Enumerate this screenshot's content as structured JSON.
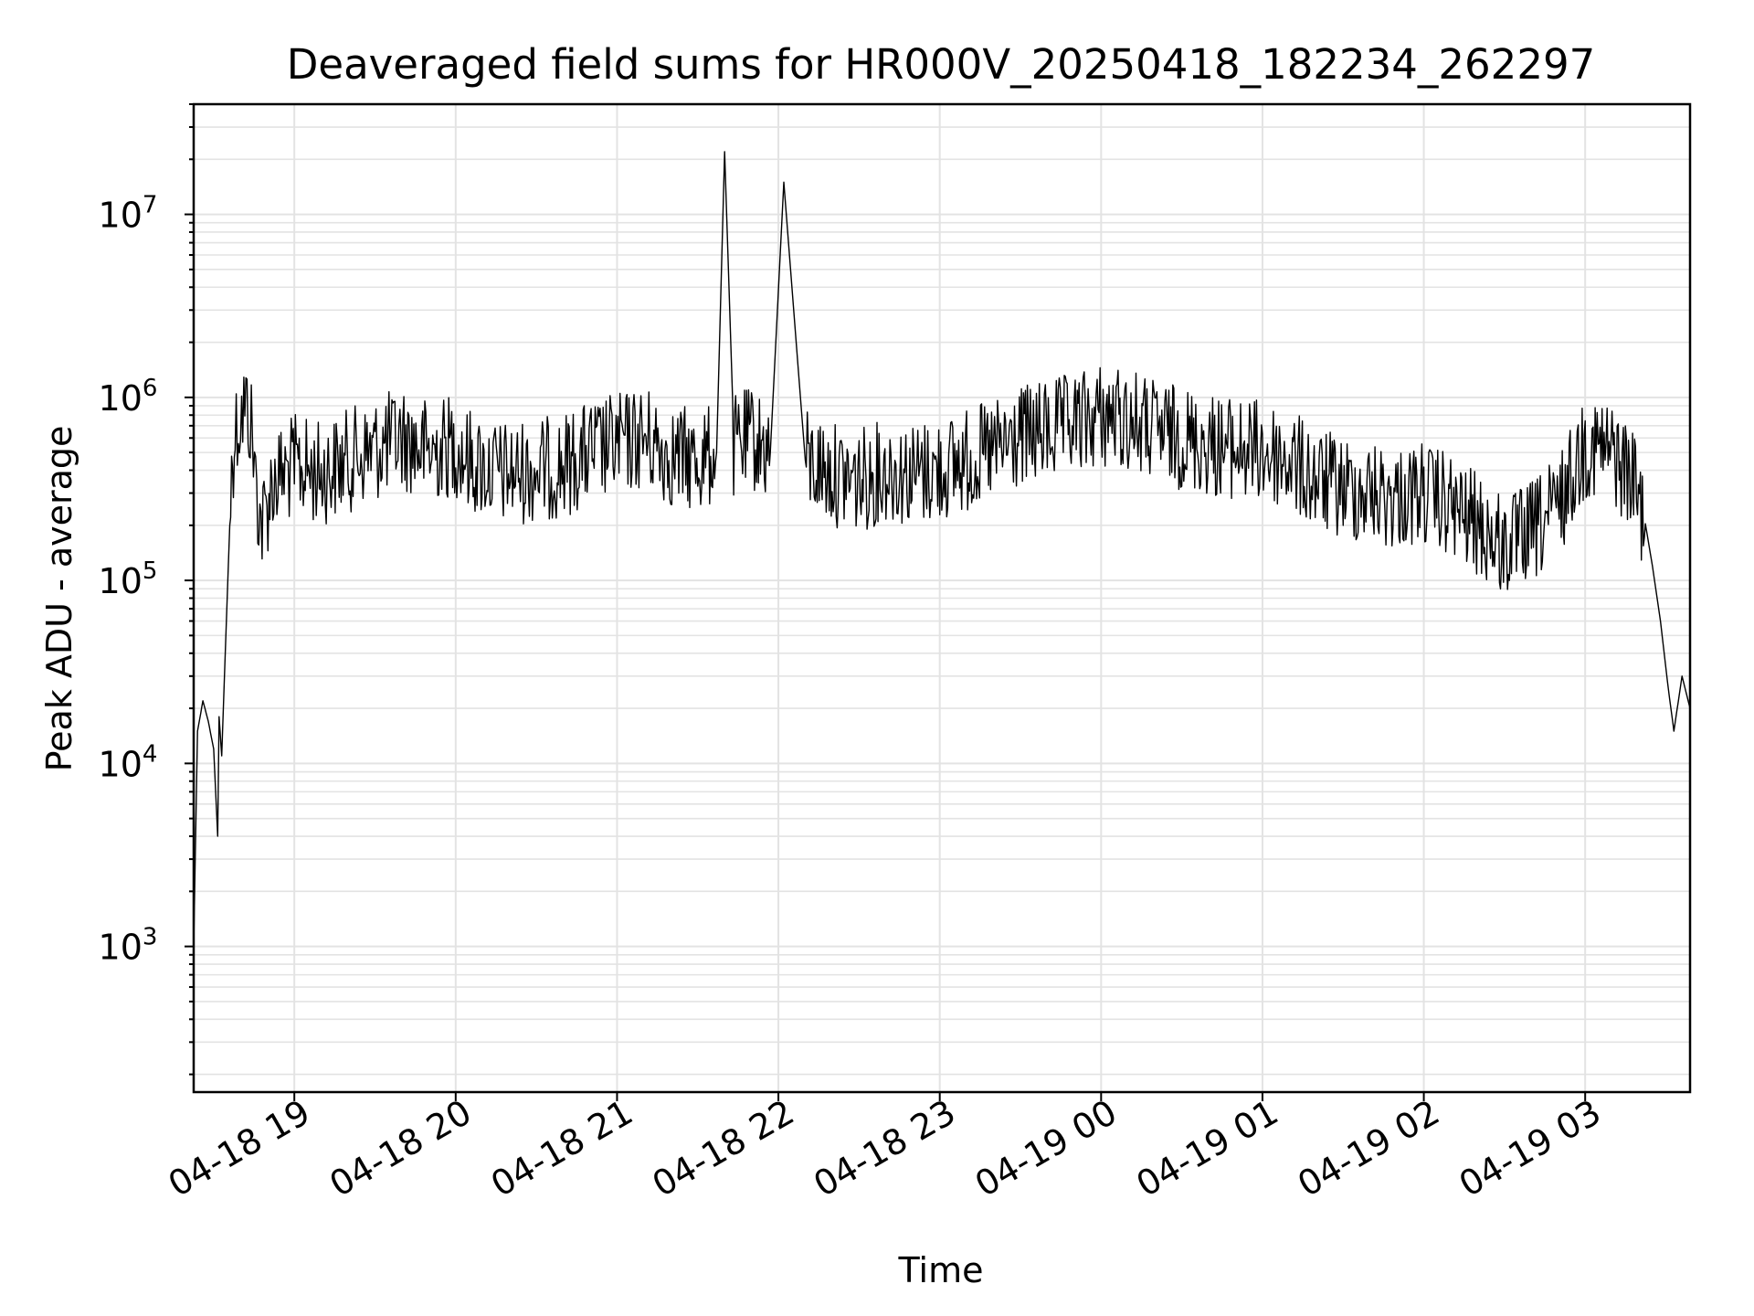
{
  "chart_data": {
    "type": "line",
    "title": "Deaveraged field sums for HR000V_20250418_182234_262297",
    "xlabel": "Time",
    "ylabel": "Peak ADU - average",
    "yscale": "log",
    "ylim": [
      160,
      40000000
    ],
    "xlim": [
      "2025-04-18 18:22:34",
      "2025-04-19 03:39:00"
    ],
    "grid": "on (major and minor)",
    "line_color": "#000000",
    "x_tick_labels": [
      "04-18 19",
      "04-18 20",
      "04-18 21",
      "04-18 22",
      "04-18 23",
      "04-19 00",
      "04-19 01",
      "04-19 02",
      "04-19 03"
    ],
    "y_tick_labels": [
      {
        "base": "10",
        "exp": "3"
      },
      {
        "base": "10",
        "exp": "4"
      },
      {
        "base": "10",
        "exp": "5"
      },
      {
        "base": "10",
        "exp": "6"
      },
      {
        "base": "10",
        "exp": "7"
      }
    ],
    "series": [
      {
        "x": [
          "2025-04-18 18:22:34",
          "2025-04-18 18:24:00",
          "2025-04-18 18:26:00",
          "2025-04-18 18:28:00",
          "2025-04-18 18:30:00",
          "2025-04-18 18:31:30",
          "2025-04-18 18:32:00",
          "2025-04-18 18:33:00",
          "2025-04-18 18:34:00",
          "2025-04-18 18:36:00",
          "2025-04-18 18:37:00",
          "2025-04-18 18:38:00",
          "2025-04-18 18:40:00",
          "2025-04-18 18:42:00",
          "2025-04-18 18:44:00",
          "2025-04-18 18:46:00",
          "2025-04-18 18:48:00",
          "2025-04-18 18:52:00",
          "2025-04-18 19:00:00",
          "2025-04-18 19:10:00",
          "2025-04-18 19:20:00",
          "2025-04-18 19:30:00",
          "2025-04-18 19:40:00",
          "2025-04-18 19:50:00",
          "2025-04-18 20:00:00",
          "2025-04-18 20:05:00",
          "2025-04-18 20:12:00",
          "2025-04-18 20:20:00",
          "2025-04-18 20:30:00",
          "2025-04-18 20:40:00",
          "2025-04-18 20:50:00",
          "2025-04-18 21:00:00",
          "2025-04-18 21:10:00",
          "2025-04-18 21:20:00",
          "2025-04-18 21:30:00",
          "2025-04-18 21:37:00",
          "2025-04-18 21:40:00",
          "2025-04-18 21:43:00",
          "2025-04-18 21:50:00",
          "2025-04-18 21:57:00",
          "2025-04-18 22:02:00",
          "2025-04-18 22:10:00",
          "2025-04-18 22:20:00",
          "2025-04-18 22:30:00",
          "2025-04-18 22:40:00",
          "2025-04-18 22:50:00",
          "2025-04-18 23:00:00",
          "2025-04-18 23:10:00",
          "2025-04-18 23:20:00",
          "2025-04-18 23:30:00",
          "2025-04-18 23:40:00",
          "2025-04-18 23:50:00",
          "2025-04-19 00:00:00",
          "2025-04-19 00:10:00",
          "2025-04-19 00:20:00",
          "2025-04-19 00:30:00",
          "2025-04-19 00:40:00",
          "2025-04-19 00:50:00",
          "2025-04-19 01:00:00",
          "2025-04-19 01:10:00",
          "2025-04-19 01:20:00",
          "2025-04-19 01:30:00",
          "2025-04-19 01:40:00",
          "2025-04-19 01:50:00",
          "2025-04-19 02:00:00",
          "2025-04-19 02:10:00",
          "2025-04-19 02:20:00",
          "2025-04-19 02:30:00",
          "2025-04-19 02:40:00",
          "2025-04-19 02:50:00",
          "2025-04-19 03:00:00",
          "2025-04-19 03:10:00",
          "2025-04-19 03:18:00",
          "2025-04-19 03:22:00",
          "2025-04-19 03:25:00",
          "2025-04-19 03:28:00",
          "2025-04-19 03:31:00",
          "2025-04-19 03:33:00",
          "2025-04-19 03:36:00",
          "2025-04-19 03:39:00"
        ],
        "values": [
          1000,
          15000,
          22000,
          17000,
          12000,
          4000,
          18000,
          11000,
          30000,
          200000,
          500000,
          650000,
          800000,
          900000,
          700000,
          300000,
          200000,
          350000,
          420000,
          380000,
          450000,
          520000,
          600000,
          500000,
          550000,
          450000,
          400000,
          380000,
          400000,
          420000,
          500000,
          550000,
          600000,
          480000,
          450000,
          500000,
          22000000,
          520000,
          600000,
          500000,
          15000000,
          450000,
          380000,
          350000,
          400000,
          380000,
          400000,
          450000,
          500000,
          600000,
          650000,
          700000,
          800000,
          750000,
          650000,
          600000,
          550000,
          520000,
          500000,
          450000,
          350000,
          320000,
          300000,
          280000,
          300000,
          250000,
          200000,
          150000,
          180000,
          250000,
          550000,
          500000,
          350000,
          220000,
          120000,
          60000,
          25000,
          15000,
          30000,
          20000
        ]
      }
    ]
  }
}
